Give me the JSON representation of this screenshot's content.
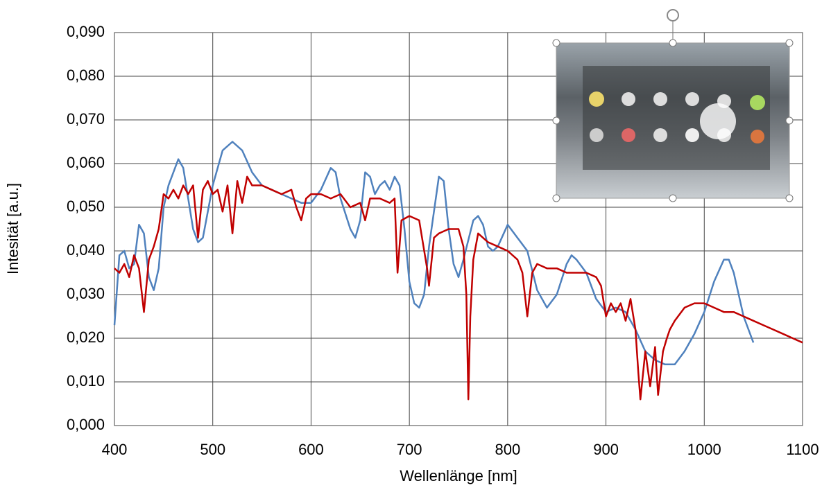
{
  "chart_data": {
    "type": "line",
    "x_label": "Wellenlänge [nm]",
    "y_label": "Intesität [a.u.]",
    "xlim": [
      400,
      1100
    ],
    "xticks": [
      400,
      500,
      600,
      700,
      800,
      900,
      1000,
      1100
    ],
    "ylim": [
      0,
      0.09
    ],
    "yticks": [
      {
        "value": 0,
        "label": "0,000"
      },
      {
        "value": 0.01,
        "label": "0,010"
      },
      {
        "value": 0.02,
        "label": "0,020"
      },
      {
        "value": 0.03,
        "label": "0,030"
      },
      {
        "value": 0.04,
        "label": "0,040"
      },
      {
        "value": 0.05,
        "label": "0,050"
      },
      {
        "value": 0.06,
        "label": "0,060"
      },
      {
        "value": 0.07,
        "label": "0,070"
      },
      {
        "value": 0.08,
        "label": "0,080"
      },
      {
        "value": 0.09,
        "label": "0,090"
      }
    ],
    "grid": true,
    "series": [
      {
        "color": "#4f81bd",
        "x": [
          400,
          405,
          410,
          415,
          420,
          425,
          430,
          435,
          440,
          445,
          450,
          455,
          460,
          465,
          470,
          475,
          480,
          485,
          490,
          500,
          510,
          520,
          530,
          540,
          550,
          560,
          570,
          580,
          590,
          600,
          610,
          620,
          625,
          630,
          640,
          645,
          650,
          655,
          660,
          665,
          670,
          675,
          680,
          685,
          690,
          695,
          700,
          705,
          710,
          715,
          720,
          730,
          735,
          740,
          745,
          750,
          755,
          765,
          770,
          775,
          780,
          785,
          790,
          800,
          810,
          820,
          830,
          840,
          850,
          860,
          865,
          870,
          880,
          890,
          900,
          910,
          920,
          930,
          940,
          950,
          960,
          970,
          980,
          990,
          1000,
          1010,
          1020,
          1025,
          1030,
          1040,
          1050
        ],
        "values": [
          0.023,
          0.039,
          0.04,
          0.036,
          0.037,
          0.046,
          0.044,
          0.034,
          0.031,
          0.036,
          0.05,
          0.055,
          0.058,
          0.061,
          0.059,
          0.052,
          0.045,
          0.042,
          0.043,
          0.055,
          0.063,
          0.065,
          0.063,
          0.058,
          0.055,
          0.054,
          0.053,
          0.052,
          0.051,
          0.051,
          0.054,
          0.059,
          0.058,
          0.052,
          0.045,
          0.043,
          0.047,
          0.058,
          0.057,
          0.053,
          0.055,
          0.056,
          0.054,
          0.057,
          0.055,
          0.045,
          0.033,
          0.028,
          0.027,
          0.03,
          0.041,
          0.057,
          0.056,
          0.045,
          0.037,
          0.034,
          0.038,
          0.047,
          0.048,
          0.046,
          0.041,
          0.04,
          0.041,
          0.046,
          0.043,
          0.04,
          0.031,
          0.027,
          0.03,
          0.037,
          0.039,
          0.038,
          0.035,
          0.029,
          0.026,
          0.027,
          0.026,
          0.022,
          0.017,
          0.015,
          0.014,
          0.014,
          0.017,
          0.021,
          0.026,
          0.033,
          0.038,
          0.038,
          0.035,
          0.025,
          0.019
        ]
      },
      {
        "color": "#c00000",
        "x": [
          400,
          405,
          410,
          415,
          420,
          425,
          430,
          435,
          440,
          445,
          450,
          455,
          460,
          465,
          470,
          475,
          480,
          485,
          490,
          495,
          500,
          505,
          510,
          515,
          520,
          525,
          530,
          535,
          540,
          550,
          560,
          570,
          580,
          585,
          590,
          595,
          600,
          610,
          620,
          630,
          640,
          650,
          655,
          660,
          670,
          680,
          685,
          688,
          692,
          700,
          710,
          718,
          720,
          725,
          730,
          740,
          750,
          755,
          758,
          760,
          762,
          765,
          770,
          780,
          790,
          800,
          810,
          815,
          820,
          825,
          830,
          840,
          850,
          860,
          870,
          880,
          890,
          895,
          900,
          905,
          910,
          915,
          920,
          925,
          930,
          933,
          935,
          940,
          945,
          950,
          953,
          958,
          962,
          965,
          970,
          980,
          990,
          1000,
          1010,
          1020,
          1030,
          1040,
          1050,
          1060,
          1070,
          1080,
          1090,
          1100
        ],
        "values": [
          0.036,
          0.035,
          0.037,
          0.034,
          0.039,
          0.036,
          0.026,
          0.038,
          0.041,
          0.045,
          0.053,
          0.052,
          0.054,
          0.052,
          0.055,
          0.053,
          0.055,
          0.043,
          0.054,
          0.056,
          0.053,
          0.054,
          0.049,
          0.055,
          0.044,
          0.056,
          0.051,
          0.057,
          0.055,
          0.055,
          0.054,
          0.053,
          0.054,
          0.05,
          0.047,
          0.052,
          0.053,
          0.053,
          0.052,
          0.053,
          0.05,
          0.051,
          0.047,
          0.052,
          0.052,
          0.051,
          0.052,
          0.035,
          0.047,
          0.048,
          0.047,
          0.036,
          0.032,
          0.043,
          0.044,
          0.045,
          0.045,
          0.041,
          0.03,
          0.006,
          0.025,
          0.038,
          0.044,
          0.042,
          0.041,
          0.04,
          0.038,
          0.035,
          0.025,
          0.035,
          0.037,
          0.036,
          0.036,
          0.035,
          0.035,
          0.035,
          0.034,
          0.032,
          0.025,
          0.028,
          0.026,
          0.028,
          0.024,
          0.029,
          0.022,
          0.012,
          0.006,
          0.017,
          0.009,
          0.018,
          0.007,
          0.017,
          0.02,
          0.022,
          0.024,
          0.027,
          0.028,
          0.028,
          0.027,
          0.026,
          0.026,
          0.025,
          0.024,
          0.023,
          0.022,
          0.021,
          0.02,
          0.019
        ]
      }
    ]
  }
}
